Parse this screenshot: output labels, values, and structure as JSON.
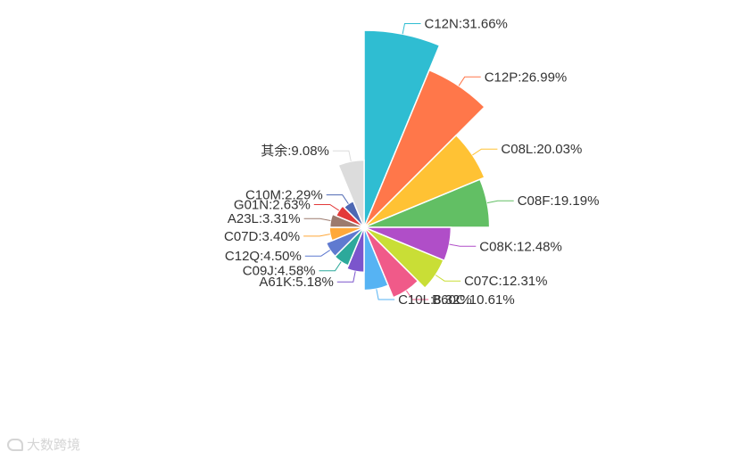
{
  "chart_data": {
    "type": "pie",
    "title": "",
    "slices": [
      {
        "label": "C12N:31.66%",
        "value": 31.66,
        "color": "#2fbdd2"
      },
      {
        "label": "C12P:26.99%",
        "value": 26.99,
        "color": "#ff774a"
      },
      {
        "label": "C08L:20.03%",
        "value": 20.03,
        "color": "#ffc234"
      },
      {
        "label": "C08F:19.19%",
        "value": 19.19,
        "color": "#62bf64"
      },
      {
        "label": "C08K:12.48%",
        "value": 12.48,
        "color": "#b04ec8"
      },
      {
        "label": "C07C:12.31%",
        "value": 12.31,
        "color": "#c9de36"
      },
      {
        "label": "B60C:10.61%",
        "value": 10.61,
        "color": "#f05a89"
      },
      {
        "label": "C10L:8.32%",
        "value": 8.32,
        "color": "#56b3f3"
      },
      {
        "label": "A61K:5.18%",
        "value": 5.18,
        "color": "#7b55cc"
      },
      {
        "label": "C09J:4.58%",
        "value": 4.58,
        "color": "#2da99b"
      },
      {
        "label": "C12Q:4.50%",
        "value": 4.5,
        "color": "#5f7ad0"
      },
      {
        "label": "C07D:3.40%",
        "value": 3.4,
        "color": "#ffa83a"
      },
      {
        "label": "A23L:3.31%",
        "value": 3.31,
        "color": "#9b7a6e"
      },
      {
        "label": "G01N:2.63%",
        "value": 2.63,
        "color": "#e33a3a"
      },
      {
        "label": "C10M:2.29%",
        "value": 2.29,
        "color": "#4e68b3"
      },
      {
        "label": "其余:9.08%",
        "value": 9.08,
        "color": "#dcdcdc"
      }
    ],
    "legend": "none",
    "rose_type": "radius"
  },
  "watermark": {
    "text": "大数跨境",
    "icon": "swirl-logo-icon"
  }
}
